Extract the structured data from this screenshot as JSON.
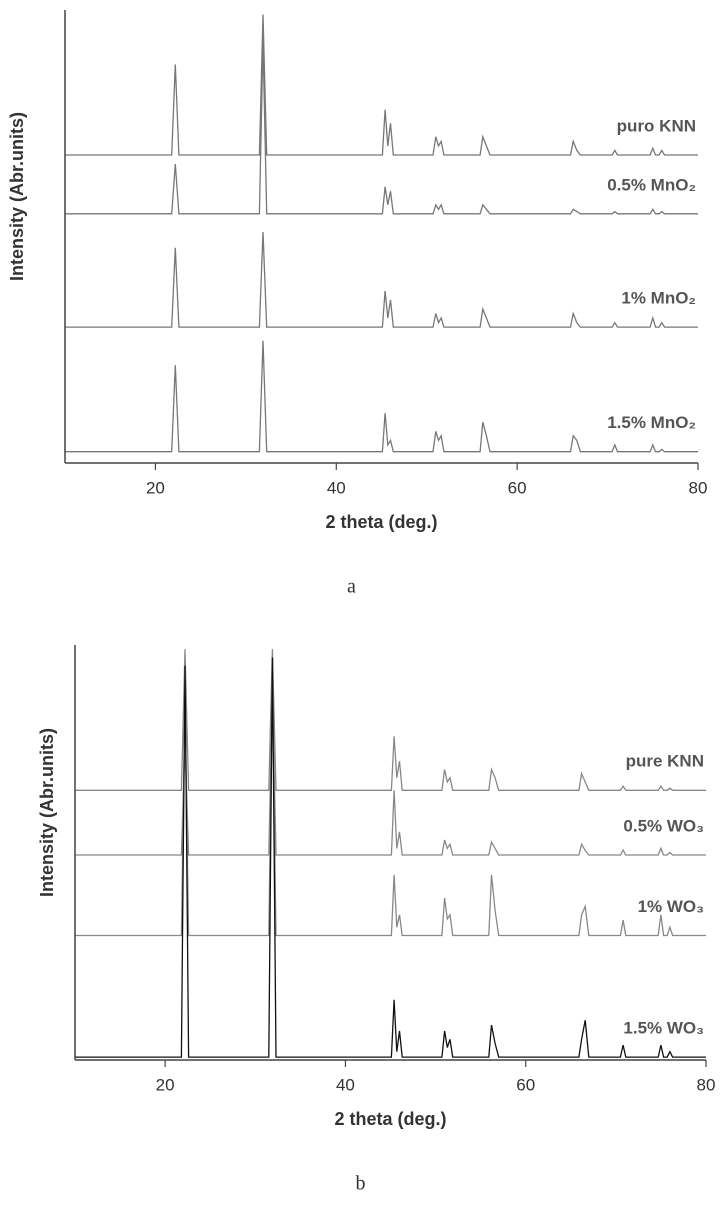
{
  "chart_data": [
    {
      "type": "line",
      "caption": "a",
      "x_label": "2 theta (deg.)",
      "y_label": "Intensity (Abr.units)",
      "xlim": [
        10,
        80
      ],
      "xticks": [
        20,
        40,
        60,
        80
      ],
      "ylim": [
        0,
        100
      ],
      "x": [
        10,
        21.8,
        22.2,
        22.6,
        31.5,
        31.9,
        32.3,
        45.1,
        45.4,
        45.7,
        46.0,
        46.3,
        50.7,
        51.0,
        51.3,
        51.6,
        51.9,
        55.9,
        56.2,
        56.6,
        57.0,
        65.9,
        66.2,
        66.6,
        67.0,
        70.5,
        70.8,
        71.1,
        74.7,
        75.0,
        75.3,
        75.7,
        76.0,
        76.3,
        80
      ],
      "series": [
        {
          "name": "puro KNN",
          "color": "#777777",
          "values": [
            68,
            68,
            88,
            68,
            68,
            99,
            68,
            68,
            78,
            70,
            75,
            68,
            68,
            72,
            70,
            71,
            68,
            68,
            72,
            70,
            68,
            68,
            71,
            69,
            68,
            68,
            69,
            68,
            68,
            69.5,
            68,
            68,
            69,
            68,
            68
          ]
        },
        {
          "name": "0.5% MnO₂",
          "color": "#777777",
          "values": [
            55,
            55,
            66,
            55,
            55,
            93,
            55,
            55,
            61,
            57,
            60,
            55,
            55,
            57,
            56,
            57,
            55,
            55,
            57,
            56,
            55,
            55,
            56,
            55.5,
            55,
            55,
            55.5,
            55,
            55,
            56,
            55,
            55,
            55.5,
            55,
            55
          ]
        },
        {
          "name": "1% MnO₂",
          "color": "#777777",
          "values": [
            30,
            30,
            47.5,
            30,
            30,
            51,
            30,
            30,
            38,
            32,
            36,
            30,
            30,
            33,
            31,
            32,
            30,
            30,
            34,
            32,
            30,
            30,
            33,
            31,
            30,
            30,
            31,
            30,
            30,
            32,
            30,
            30,
            31,
            30,
            30
          ]
        },
        {
          "name": "1.5% MnO₂",
          "color": "#777777",
          "values": [
            2.5,
            2.5,
            21.6,
            2.5,
            2.5,
            27,
            2.5,
            2.5,
            11,
            4,
            5,
            2.5,
            2.5,
            7,
            5,
            6,
            2.5,
            2.5,
            9,
            6,
            2.5,
            2.5,
            6,
            5,
            2.5,
            2.5,
            4,
            2.5,
            2.5,
            4,
            2.5,
            2.5,
            3,
            2.5,
            2.5
          ]
        }
      ]
    },
    {
      "type": "line",
      "caption": "b",
      "x_label": "2 theta (deg.)",
      "y_label": "Intensity (Abr.units)",
      "xlim": [
        10,
        80
      ],
      "xticks": [
        20,
        40,
        60,
        80
      ],
      "ylim": [
        0,
        100
      ],
      "x": [
        10,
        21.8,
        22.2,
        22.6,
        31.5,
        31.9,
        32.3,
        45.1,
        45.4,
        45.7,
        46.0,
        46.3,
        50.7,
        51.0,
        51.3,
        51.6,
        51.9,
        55.9,
        56.2,
        56.6,
        57.0,
        65.9,
        66.2,
        66.6,
        67.0,
        70.5,
        70.8,
        71.1,
        74.7,
        75.0,
        75.3,
        75.7,
        76.0,
        76.3,
        80
      ],
      "series": [
        {
          "name": "pure KNN",
          "color": "#888888",
          "values": [
            65,
            65,
            99,
            65,
            65,
            99,
            65,
            65,
            78,
            68,
            72,
            65,
            65,
            70,
            67,
            68,
            65,
            65,
            70,
            68,
            65,
            65,
            69,
            67,
            65,
            65,
            66,
            65,
            65,
            66,
            65,
            65,
            65.5,
            65,
            65
          ]
        },
        {
          "name": "0.5% WO₃",
          "color": "#888888",
          "values": [
            49.4,
            49.4,
            77,
            49.4,
            49.4,
            89,
            49.4,
            49.4,
            65,
            51,
            55,
            49.4,
            49.4,
            53,
            51,
            52,
            49.4,
            49.4,
            52.5,
            51,
            49.4,
            49.4,
            52,
            50.5,
            49.4,
            49.4,
            50.6,
            49.4,
            49.4,
            51,
            49.4,
            49.4,
            50,
            49.4,
            49.4
          ]
        },
        {
          "name": "1% WO₃",
          "color": "#888888",
          "values": [
            30,
            30,
            87,
            30,
            30,
            92,
            30,
            30,
            44.6,
            32,
            35,
            30,
            30,
            39,
            34,
            35,
            30,
            30,
            44.6,
            36,
            30,
            30,
            35,
            37,
            30,
            30,
            33.7,
            30,
            30,
            35,
            30,
            30,
            32,
            30,
            30
          ]
        },
        {
          "name": "1.5% WO₃",
          "color": "#111111",
          "values": [
            0.7,
            0.7,
            95,
            0.7,
            0.7,
            97,
            0.7,
            0.7,
            14.5,
            2,
            7,
            0.7,
            0.7,
            7,
            3,
            5,
            0.7,
            0.7,
            8.4,
            4,
            0.7,
            0.7,
            5,
            9.6,
            0.7,
            0.7,
            3.6,
            0.7,
            0.7,
            3.6,
            0.7,
            0.7,
            2,
            0.7,
            0.7
          ]
        }
      ]
    }
  ]
}
